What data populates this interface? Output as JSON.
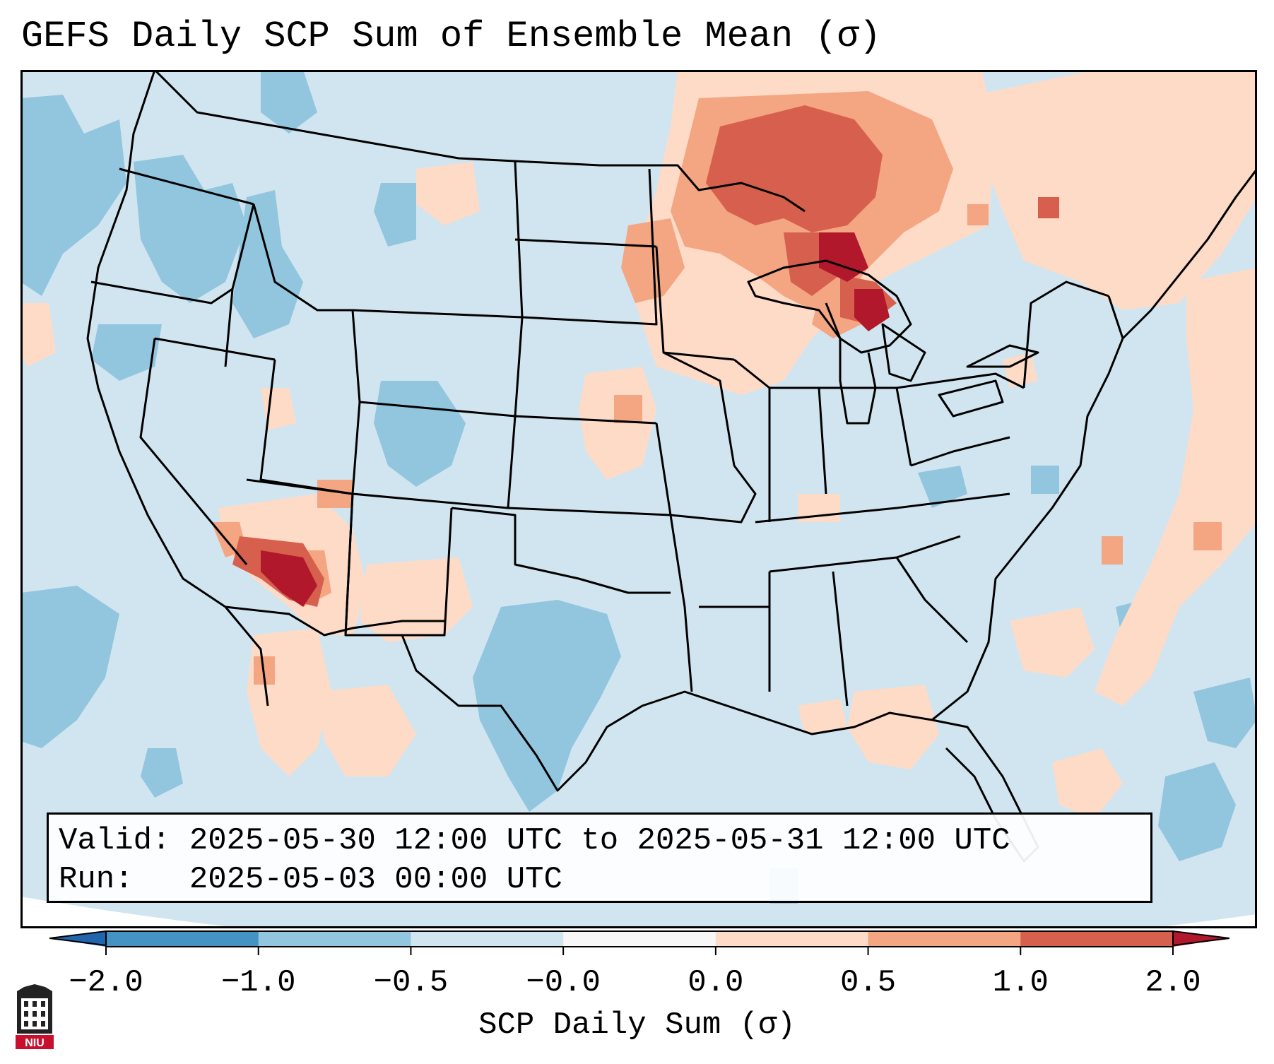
{
  "title": "GEFS Daily SCP Sum of Ensemble Mean (σ)",
  "info": {
    "valid_label": "Valid:",
    "valid_value": "2025-05-30 12:00 UTC to 2025-05-31 12:00 UTC",
    "run_label": "Run:",
    "run_value": "2025-05-03 00:00 UTC"
  },
  "colorbar": {
    "label": "SCP Daily Sum (σ)",
    "ticks": [
      "−2.0",
      "−1.0",
      "−0.5",
      "−0.0",
      "0.0",
      "0.5",
      "1.0",
      "2.0"
    ],
    "bins": [
      {
        "range": "<= -2.0",
        "color": "#2166ac"
      },
      {
        "range": "-2.0 to -1.0",
        "color": "#4393c3"
      },
      {
        "range": "-1.0 to -0.5",
        "color": "#92c5de"
      },
      {
        "range": "-0.5 to -0.0",
        "color": "#d1e5f0"
      },
      {
        "range": "-0.0 to 0.0",
        "color": "#f7f7f7"
      },
      {
        "range": "0.0 to 0.5",
        "color": "#fddbc7"
      },
      {
        "range": "0.5 to 1.0",
        "color": "#f4a582"
      },
      {
        "range": "1.0 to 2.0",
        "color": "#d6604d"
      },
      {
        "range": ">= 2.0",
        "color": "#b2182b"
      }
    ]
  },
  "map": {
    "region": "Contiguous United States",
    "background_color": "#d1e5f0",
    "anomaly_regions": [
      {
        "location": "Great Lakes / Upper Midwest / Ontario",
        "level": "1.0 to >= 2.0"
      },
      {
        "location": "Western Arizona / southern Nevada",
        "level": "1.0 to >= 2.0"
      },
      {
        "location": "New Mexico / northern Mexico",
        "level": "0.0 to 0.5"
      },
      {
        "location": "Pacific Northwest / Idaho / Colorado",
        "level": "-1.0 to -0.5"
      },
      {
        "location": "Texas",
        "level": "-1.0 to -0.5"
      }
    ]
  },
  "logo": {
    "text": "NIU",
    "color": "#c8102e"
  }
}
